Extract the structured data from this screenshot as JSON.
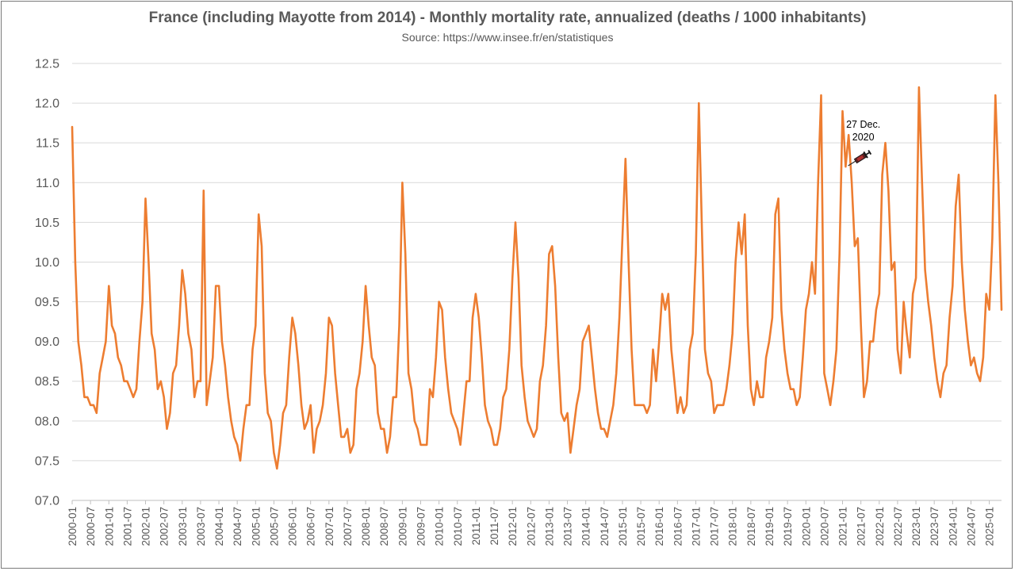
{
  "chart_data": {
    "type": "line",
    "title": "France (including Mayotte from 2014)  - Monthly mortality rate, annualized (deaths / 1000 inhabitants)",
    "subtitle": "Source: https://www.insee.fr/en/statistiques",
    "ylim": [
      7.0,
      12.5
    ],
    "yticks": [
      "07.0",
      "07.5",
      "08.0",
      "08.5",
      "09.0",
      "09.5",
      "10.0",
      "10.5",
      "11.0",
      "11.5",
      "12.0",
      "12.5"
    ],
    "x_start": "2000-01",
    "x_tick_labels": [
      "2000-01",
      "2000-07",
      "2001-01",
      "2001-07",
      "2002-01",
      "2002-07",
      "2003-01",
      "2003-07",
      "2004-01",
      "2004-07",
      "2005-01",
      "2005-07",
      "2006-01",
      "2006-07",
      "2007-01",
      "2007-07",
      "2008-01",
      "2008-07",
      "2009-01",
      "2009-07",
      "2010-01",
      "2010-07",
      "2011-01",
      "2011-07",
      "2012-01",
      "2012-07",
      "2013-01",
      "2013-07",
      "2014-01",
      "2014-07",
      "2015-01",
      "2015-07",
      "2016-01",
      "2016-07",
      "2017-01",
      "2017-07",
      "2018-01",
      "2018-07",
      "2019-01",
      "2019-07",
      "2020-01",
      "2020-07",
      "2021-01",
      "2021-07",
      "2022-01",
      "2022-07",
      "2023-01",
      "2023-07",
      "2024-01",
      "2024-07",
      "2025-01"
    ],
    "grid": true,
    "legend": "none",
    "series": [
      {
        "color": "#ED7D31",
        "values": [
          11.7,
          10.0,
          9.0,
          8.7,
          8.3,
          8.3,
          8.2,
          8.2,
          8.1,
          8.6,
          8.8,
          9.0,
          9.7,
          9.2,
          9.1,
          8.8,
          8.7,
          8.5,
          8.5,
          8.4,
          8.3,
          8.4,
          9.0,
          9.5,
          10.8,
          10.0,
          9.1,
          8.9,
          8.4,
          8.5,
          8.3,
          7.9,
          8.1,
          8.6,
          8.7,
          9.2,
          9.9,
          9.6,
          9.1,
          8.9,
          8.3,
          8.5,
          8.5,
          10.9,
          8.2,
          8.5,
          8.8,
          9.7,
          9.7,
          9.0,
          8.7,
          8.3,
          8.0,
          7.8,
          7.7,
          7.5,
          7.9,
          8.2,
          8.2,
          8.9,
          9.2,
          10.6,
          10.2,
          8.6,
          8.1,
          8.0,
          7.6,
          7.4,
          7.7,
          8.1,
          8.2,
          8.8,
          9.3,
          9.1,
          8.7,
          8.2,
          7.9,
          8.0,
          8.2,
          7.6,
          7.9,
          8.0,
          8.2,
          8.6,
          9.3,
          9.2,
          8.6,
          8.2,
          7.8,
          7.8,
          7.9,
          7.6,
          7.7,
          8.4,
          8.6,
          9.0,
          9.7,
          9.2,
          8.8,
          8.7,
          8.1,
          7.9,
          7.9,
          7.6,
          7.8,
          8.3,
          8.3,
          9.2,
          11.0,
          10.1,
          8.6,
          8.4,
          8.0,
          7.9,
          7.7,
          7.7,
          7.7,
          8.4,
          8.3,
          8.8,
          9.5,
          9.4,
          8.8,
          8.4,
          8.1,
          8.0,
          7.9,
          7.7,
          8.1,
          8.5,
          8.5,
          9.3,
          9.6,
          9.3,
          8.8,
          8.2,
          8.0,
          7.9,
          7.7,
          7.7,
          7.9,
          8.3,
          8.4,
          8.9,
          9.8,
          10.5,
          9.8,
          8.7,
          8.3,
          8.0,
          7.9,
          7.8,
          7.9,
          8.5,
          8.7,
          9.2,
          10.1,
          10.2,
          9.7,
          8.8,
          8.1,
          8.0,
          8.1,
          7.6,
          7.9,
          8.2,
          8.4,
          9.0,
          9.1,
          9.2,
          8.8,
          8.4,
          8.1,
          7.9,
          7.9,
          7.8,
          8.0,
          8.2,
          8.6,
          9.3,
          10.3,
          11.3,
          10.0,
          8.9,
          8.2,
          8.2,
          8.2,
          8.2,
          8.1,
          8.2,
          8.9,
          8.5,
          9.0,
          9.6,
          9.4,
          9.6,
          8.9,
          8.5,
          8.1,
          8.3,
          8.1,
          8.2,
          8.9,
          9.1,
          10.1,
          12.0,
          10.4,
          8.9,
          8.6,
          8.5,
          8.1,
          8.2,
          8.2,
          8.2,
          8.4,
          8.7,
          9.1,
          10.0,
          10.5,
          10.1,
          10.6,
          9.2,
          8.4,
          8.2,
          8.5,
          8.3,
          8.3,
          8.8,
          9.0,
          9.3,
          10.6,
          10.8,
          9.4,
          8.9,
          8.6,
          8.4,
          8.4,
          8.2,
          8.3,
          8.8,
          9.4,
          9.6,
          10.0,
          9.6,
          11.0,
          12.1,
          8.6,
          8.4,
          8.2,
          8.5,
          8.9,
          10.1,
          11.9,
          11.2,
          11.6,
          11.0,
          10.2,
          10.3,
          9.2,
          8.3,
          8.5,
          9.0,
          9.0,
          9.4,
          9.6,
          11.1,
          11.5,
          10.9,
          9.9,
          10.0,
          8.9,
          8.6,
          9.5,
          9.1,
          8.8,
          9.6,
          9.8,
          12.2,
          11.0,
          9.9,
          9.5,
          9.2,
          8.8,
          8.5,
          8.3,
          8.6,
          8.7,
          9.3,
          9.7,
          10.7,
          11.1,
          10.0,
          9.4,
          9.0,
          8.7,
          8.8,
          8.6,
          8.5,
          8.8,
          9.6,
          9.4,
          10.3,
          12.1,
          11.0,
          9.4
        ]
      }
    ],
    "annotations": [
      {
        "lines": [
          "27 Dec.",
          "2020"
        ],
        "date": "2020-12",
        "icon": "syringe-icon"
      }
    ]
  }
}
